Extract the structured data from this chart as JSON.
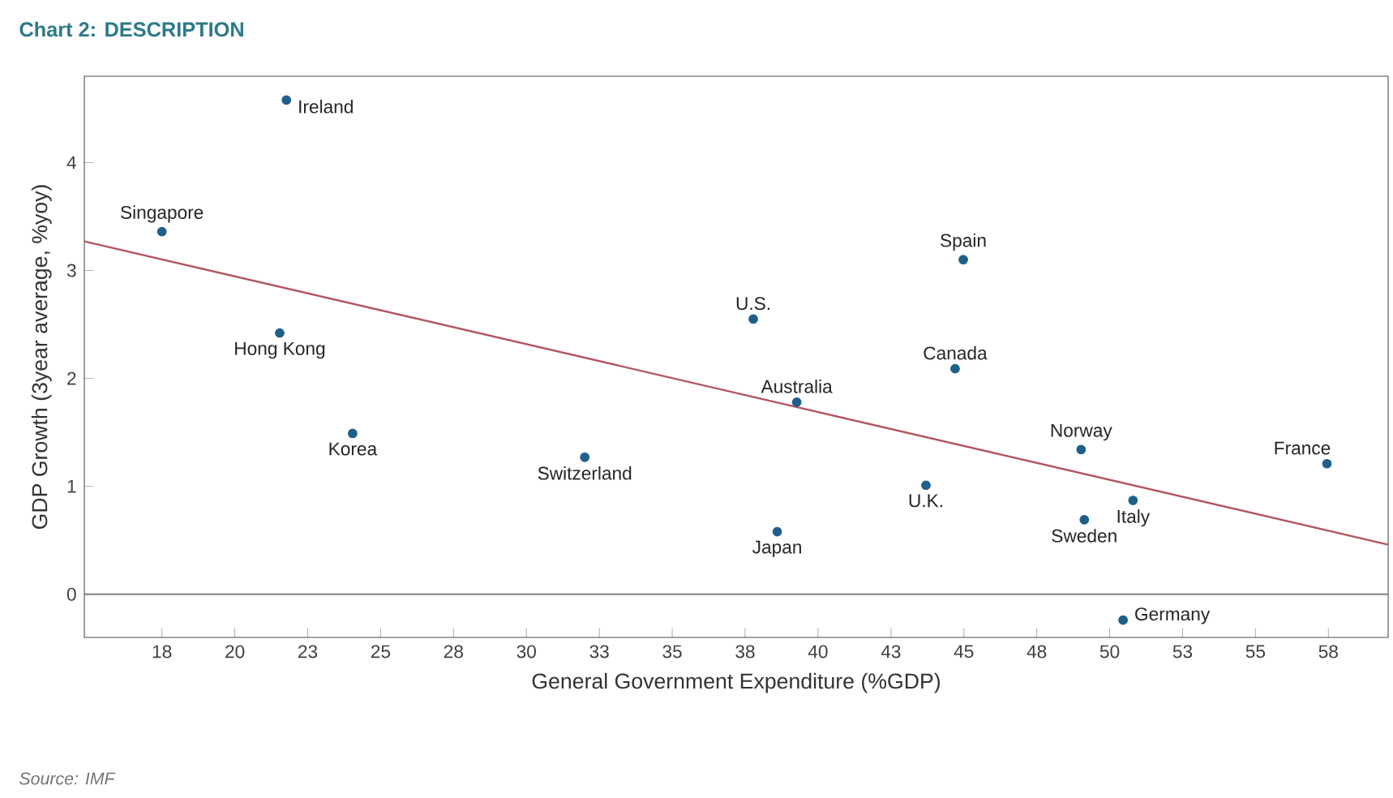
{
  "chart_data": {
    "type": "scatter",
    "title": "Chart 2: DESCRIPTION",
    "xlabel": "General Government Expenditure (%GDP)",
    "ylabel": "GDP Growth (3year average, %yoy)",
    "x": [
      21.77,
      17.5,
      21.54,
      24.04,
      32.0,
      37.78,
      39.27,
      38.6,
      44.98,
      44.7,
      43.7,
      49.02,
      50.8,
      49.13,
      57.45,
      50.46
    ],
    "series": [
      {
        "marker": "circle",
        "color": "#1f5f8b",
        "values": [
          4.58,
          3.36,
          2.42,
          1.49,
          1.27,
          2.55,
          1.78,
          0.58,
          3.1,
          2.09,
          1.01,
          1.34,
          0.87,
          0.69,
          1.21,
          -0.24
        ]
      },
      {
        "type": "line",
        "marker": "none",
        "color": "#b4545e",
        "x": [
          14.84,
          59.55
        ],
        "values": [
          3.27,
          0.46
        ]
      }
    ],
    "grid": false,
    "xlim": [
      14.84,
      59.55
    ],
    "ylim": [
      -0.4,
      4.8
    ],
    "xticks": [
      {
        "value": 17.5,
        "label": "18"
      },
      20,
      {
        "value": 22.5,
        "label": "23"
      },
      25,
      {
        "value": 27.5,
        "label": "28"
      },
      30,
      {
        "value": 32.5,
        "label": "33"
      },
      35,
      {
        "value": 37.5,
        "label": "38"
      },
      40,
      {
        "value": 42.5,
        "label": "43"
      },
      45,
      {
        "value": 47.5,
        "label": "48"
      },
      50,
      {
        "value": 52.5,
        "label": "53"
      },
      55,
      {
        "value": 57.5,
        "label": "58"
      }
    ],
    "yticks": [
      0,
      1,
      2,
      3,
      4
    ],
    "ref_lines": [
      {
        "axis": "y",
        "value": 0,
        "color": "#808080"
      }
    ],
    "annotations": [
      {
        "text": "Ireland",
        "x": 21.77,
        "y": 4.58
      },
      {
        "text": "Singapore",
        "x": 17.5,
        "y": 3.36
      },
      {
        "text": "Hong Kong",
        "x": 21.54,
        "y": 2.42
      },
      {
        "text": "Korea",
        "x": 24.04,
        "y": 1.49
      },
      {
        "text": "Switzerland",
        "x": 32.0,
        "y": 1.27
      },
      {
        "text": "U.S.",
        "x": 37.78,
        "y": 2.55
      },
      {
        "text": "Australia",
        "x": 39.27,
        "y": 1.78
      },
      {
        "text": "Japan",
        "x": 38.6,
        "y": 0.58
      },
      {
        "text": "Spain",
        "x": 44.98,
        "y": 3.1
      },
      {
        "text": "Canada",
        "x": 44.7,
        "y": 2.09
      },
      {
        "text": "U.K.",
        "x": 43.7,
        "y": 1.01
      },
      {
        "text": "Norway",
        "x": 49.02,
        "y": 1.34
      },
      {
        "text": "Italy",
        "x": 50.8,
        "y": 0.87
      },
      {
        "text": "Sweden",
        "x": 49.13,
        "y": 0.69
      },
      {
        "text": "France",
        "x": 57.45,
        "y": 1.21
      },
      {
        "text": "Germany",
        "x": 50.46,
        "y": -0.24
      },
      "Source: IMF"
    ]
  }
}
